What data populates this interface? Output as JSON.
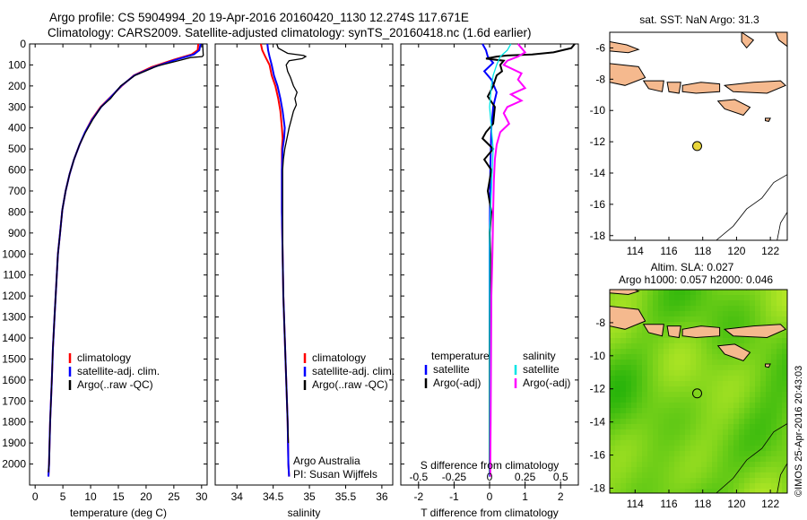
{
  "header": {
    "line1": "Argo profile: CS 5904994_20 19-Apr-2016 20160420_1130 12.274S 117.671E",
    "line2": "Climatology: CARS2009. Satellite-adjusted climatology: synTS_20160418.nc (1.6d earlier)"
  },
  "credit": "©IMOS 25-Apr-2016 20:43:03",
  "colors": {
    "clim": "#ff0000",
    "sat": "#0000ff",
    "argo": "#000000",
    "sat_sal": "#00e5e5",
    "argo_sal": "#ff00ff",
    "land": "#f5b98e",
    "argo_marker": "#e8d53a"
  },
  "chart_data": [
    {
      "id": "temperature",
      "type": "line",
      "xlabel": "temperature (deg C)",
      "xlim": [
        -1,
        31
      ],
      "ylim": [
        2100,
        0
      ],
      "xticks": [
        0,
        5,
        10,
        15,
        20,
        25,
        30
      ],
      "yticks": [
        0,
        100,
        200,
        300,
        400,
        500,
        600,
        700,
        800,
        900,
        1000,
        1100,
        1200,
        1300,
        1400,
        1500,
        1600,
        1700,
        1800,
        1900,
        2000
      ],
      "legend": [
        "climatology",
        "satellite-adj. clim.",
        "Argo(..raw -QC)"
      ],
      "series": [
        {
          "name": "climatology",
          "color": "#ff0000",
          "points": [
            [
              29.4,
              0
            ],
            [
              29.3,
              30
            ],
            [
              28.2,
              50
            ],
            [
              25,
              75
            ],
            [
              21,
              110
            ],
            [
              17.8,
              150
            ],
            [
              15.6,
              200
            ],
            [
              13.3,
              260
            ],
            [
              11.8,
              300
            ],
            [
              10.2,
              360
            ],
            [
              9.0,
              420
            ],
            [
              8.0,
              480
            ],
            [
              7.0,
              550
            ],
            [
              6.2,
              620
            ],
            [
              5.5,
              700
            ],
            [
              4.9,
              790
            ],
            [
              4.5,
              900
            ],
            [
              4.1,
              1000
            ],
            [
              3.8,
              1150
            ],
            [
              3.5,
              1300
            ],
            [
              3.2,
              1450
            ],
            [
              3.0,
              1600
            ],
            [
              2.7,
              1800
            ],
            [
              2.5,
              2000
            ],
            [
              2.4,
              2060
            ]
          ]
        },
        {
          "name": "satellite-adj. clim.",
          "color": "#0000ff",
          "points": [
            [
              29.8,
              0
            ],
            [
              29.6,
              30
            ],
            [
              28.6,
              50
            ],
            [
              25.4,
              75
            ],
            [
              21.4,
              110
            ],
            [
              17.9,
              150
            ],
            [
              15.5,
              200
            ],
            [
              13.4,
              260
            ],
            [
              11.9,
              300
            ],
            [
              10.3,
              360
            ],
            [
              9.0,
              420
            ],
            [
              8.0,
              480
            ],
            [
              7.0,
              550
            ],
            [
              6.2,
              620
            ],
            [
              5.5,
              700
            ],
            [
              4.9,
              790
            ],
            [
              4.5,
              900
            ],
            [
              4.1,
              1000
            ],
            [
              3.8,
              1150
            ],
            [
              3.5,
              1300
            ],
            [
              3.2,
              1450
            ],
            [
              3.0,
              1600
            ],
            [
              2.7,
              1800
            ],
            [
              2.5,
              2000
            ],
            [
              2.4,
              2060
            ]
          ]
        },
        {
          "name": "Argo(..raw -QC)",
          "color": "#000000",
          "points": [
            [
              30.2,
              0
            ],
            [
              30.3,
              55
            ],
            [
              30.1,
              60
            ],
            [
              28,
              65
            ],
            [
              25.8,
              80
            ],
            [
              22,
              105
            ],
            [
              18,
              150
            ],
            [
              15.4,
              200
            ],
            [
              13.6,
              260
            ],
            [
              11.9,
              300
            ],
            [
              10.4,
              360
            ],
            [
              9.1,
              420
            ],
            [
              8.0,
              480
            ],
            [
              7.0,
              550
            ],
            [
              6.2,
              620
            ],
            [
              5.5,
              700
            ],
            [
              4.9,
              790
            ],
            [
              4.5,
              900
            ],
            [
              4.1,
              1000
            ],
            [
              3.8,
              1150
            ],
            [
              3.5,
              1300
            ],
            [
              3.2,
              1450
            ],
            [
              3.0,
              1600
            ],
            [
              2.7,
              1800
            ],
            [
              2.5,
              2000
            ],
            [
              2.4,
              2040
            ]
          ]
        }
      ]
    },
    {
      "id": "salinity",
      "type": "line",
      "xlabel": "salinity",
      "xlim": [
        33.7,
        36.15
      ],
      "ylim": [
        2100,
        0
      ],
      "xticks": [
        34,
        34.5,
        35,
        35.5,
        36
      ],
      "legend": [
        "climatology",
        "satellite-adj. clim.",
        "Argo(..raw -QC)"
      ],
      "annotations": [
        "Argo Australia",
        "PI: Susan Wijffels"
      ],
      "series": [
        {
          "name": "climatology",
          "color": "#ff0000",
          "points": [
            [
              34.33,
              0
            ],
            [
              34.35,
              30
            ],
            [
              34.39,
              60
            ],
            [
              34.45,
              100
            ],
            [
              34.48,
              150
            ],
            [
              34.53,
              200
            ],
            [
              34.57,
              260
            ],
            [
              34.6,
              320
            ],
            [
              34.62,
              400
            ],
            [
              34.63,
              450
            ],
            [
              34.62,
              500
            ],
            [
              34.62,
              600
            ],
            [
              34.62,
              800
            ],
            [
              34.63,
              1000
            ],
            [
              34.64,
              1200
            ],
            [
              34.66,
              1400
            ],
            [
              34.68,
              1600
            ],
            [
              34.7,
              1800
            ],
            [
              34.71,
              2000
            ],
            [
              34.72,
              2060
            ]
          ]
        },
        {
          "name": "satellite-adj. clim.",
          "color": "#0000ff",
          "points": [
            [
              34.42,
              0
            ],
            [
              34.43,
              30
            ],
            [
              34.45,
              60
            ],
            [
              34.48,
              100
            ],
            [
              34.51,
              150
            ],
            [
              34.56,
              200
            ],
            [
              34.6,
              260
            ],
            [
              34.63,
              320
            ],
            [
              34.66,
              400
            ],
            [
              34.65,
              450
            ],
            [
              34.63,
              500
            ],
            [
              34.62,
              600
            ],
            [
              34.62,
              800
            ],
            [
              34.63,
              1000
            ],
            [
              34.64,
              1200
            ],
            [
              34.66,
              1400
            ],
            [
              34.68,
              1600
            ],
            [
              34.7,
              1800
            ],
            [
              34.71,
              2000
            ],
            [
              34.72,
              2060
            ]
          ]
        },
        {
          "name": "Argo(..raw -QC)",
          "color": "#000000",
          "points": [
            [
              34.55,
              0
            ],
            [
              34.57,
              20
            ],
            [
              34.7,
              45
            ],
            [
              34.92,
              55
            ],
            [
              34.95,
              60
            ],
            [
              34.9,
              70
            ],
            [
              34.72,
              80
            ],
            [
              34.68,
              100
            ],
            [
              34.7,
              130
            ],
            [
              34.74,
              160
            ],
            [
              34.78,
              200
            ],
            [
              34.83,
              230
            ],
            [
              34.8,
              260
            ],
            [
              34.82,
              290
            ],
            [
              34.78,
              320
            ],
            [
              34.75,
              360
            ],
            [
              34.72,
              400
            ],
            [
              34.69,
              450
            ],
            [
              34.66,
              500
            ],
            [
              34.64,
              550
            ],
            [
              34.63,
              600
            ],
            [
              34.63,
              800
            ],
            [
              34.63,
              1000
            ],
            [
              34.64,
              1200
            ],
            [
              34.66,
              1400
            ],
            [
              34.68,
              1600
            ],
            [
              34.7,
              1800
            ],
            [
              34.71,
              1900
            ]
          ]
        }
      ]
    },
    {
      "id": "difference",
      "type": "line",
      "xlabel": "T difference from climatology",
      "xlabel2": "S difference from climatology",
      "xlim": [
        -2.5,
        2.5
      ],
      "ylim": [
        2100,
        0
      ],
      "xticks": [
        -2,
        -1,
        0,
        1,
        2
      ],
      "xticks_S": [
        "-0.5",
        "-0.25",
        "0",
        "0.25",
        "0.5"
      ],
      "xticks_S_values": [
        -0.5,
        -0.25,
        0,
        0.25,
        0.5
      ],
      "legend_titles": [
        "temperature",
        "salinity"
      ],
      "legend": [
        "satellite",
        "Argo(-adj)",
        "satellite",
        "Argo(-adj)"
      ],
      "series": [
        {
          "name": "satellite",
          "color": "#0000ff",
          "points": [
            [
              -0.2,
              0
            ],
            [
              -0.1,
              30
            ],
            [
              -0.05,
              60
            ],
            [
              0.1,
              90
            ],
            [
              -0.15,
              130
            ],
            [
              0.05,
              170
            ],
            [
              0.2,
              230
            ],
            [
              0.1,
              300
            ],
            [
              0.05,
              400
            ],
            [
              0.02,
              600
            ],
            [
              0.0,
              1000
            ],
            [
              0.0,
              2060
            ]
          ]
        },
        {
          "name": "Argo(-adj)",
          "color": "#000000",
          "points": [
            [
              2.4,
              0
            ],
            [
              2.3,
              20
            ],
            [
              1.8,
              40
            ],
            [
              1.2,
              50
            ],
            [
              0.5,
              55
            ],
            [
              0.2,
              60
            ],
            [
              -0.1,
              70
            ],
            [
              0.4,
              80
            ],
            [
              0.3,
              100
            ],
            [
              0.35,
              130
            ],
            [
              0.2,
              150
            ],
            [
              0.1,
              200
            ],
            [
              -0.05,
              250
            ],
            [
              0.15,
              300
            ],
            [
              0.1,
              380
            ],
            [
              -0.1,
              420
            ],
            [
              -0.2,
              450
            ],
            [
              0.1,
              500
            ],
            [
              -0.15,
              550
            ],
            [
              0.05,
              600
            ],
            [
              -0.05,
              700
            ],
            [
              0.05,
              800
            ],
            [
              0.0,
              900
            ],
            [
              0.02,
              1000
            ],
            [
              0.0,
              1500
            ],
            [
              0.0,
              2040
            ]
          ]
        },
        {
          "name": "satellite",
          "color": "#00e5e5",
          "points": [
            [
              0.6,
              0
            ],
            [
              0.5,
              30
            ],
            [
              0.3,
              60
            ],
            [
              0.2,
              100
            ],
            [
              0.1,
              150
            ],
            [
              0.05,
              200
            ],
            [
              0.0,
              300
            ],
            [
              0.05,
              400
            ],
            [
              0.1,
              500
            ],
            [
              0.05,
              700
            ],
            [
              0.0,
              900
            ],
            [
              0.0,
              2060
            ]
          ]
        },
        {
          "name": "Argo(-adj)",
          "color": "#ff00ff",
          "points": [
            [
              0.8,
              0
            ],
            [
              0.9,
              20
            ],
            [
              1.0,
              40
            ],
            [
              0.8,
              60
            ],
            [
              0.5,
              80
            ],
            [
              0.4,
              100
            ],
            [
              0.9,
              140
            ],
            [
              0.8,
              170
            ],
            [
              1.0,
              210
            ],
            [
              0.6,
              240
            ],
            [
              0.9,
              270
            ],
            [
              0.5,
              300
            ],
            [
              0.4,
              330
            ],
            [
              0.55,
              380
            ],
            [
              0.3,
              420
            ],
            [
              0.2,
              480
            ],
            [
              0.15,
              550
            ],
            [
              0.12,
              650
            ],
            [
              0.1,
              800
            ],
            [
              0.08,
              1000
            ],
            [
              0.05,
              1200
            ],
            [
              0.04,
              1500
            ],
            [
              0.03,
              1800
            ],
            [
              0.02,
              2000
            ],
            [
              0.02,
              2060
            ]
          ]
        }
      ]
    },
    {
      "id": "map_sst",
      "type": "map",
      "title": "sat. SST: NaN Argo: 31.3",
      "xlim": [
        112.5,
        123
      ],
      "ylim": [
        -18.3,
        -5
      ],
      "xticks": [
        114,
        116,
        118,
        120,
        122
      ],
      "yticks": [
        -6,
        -8,
        -10,
        -12,
        -14,
        -16,
        -18
      ],
      "argo_position": [
        117.671,
        -12.274
      ]
    },
    {
      "id": "map_sla",
      "type": "heatmap",
      "title": "Altim. SLA: 0.027",
      "subtitle": "Argo h1000: 0.057 h2000: 0.046",
      "xlim": [
        112.5,
        123
      ],
      "ylim": [
        -18.3,
        -6
      ],
      "xticks": [
        114,
        116,
        118,
        120,
        122
      ],
      "yticks": [
        -8,
        -10,
        -12,
        -14,
        -16,
        -18
      ],
      "argo_position": [
        117.671,
        -12.274
      ]
    }
  ]
}
